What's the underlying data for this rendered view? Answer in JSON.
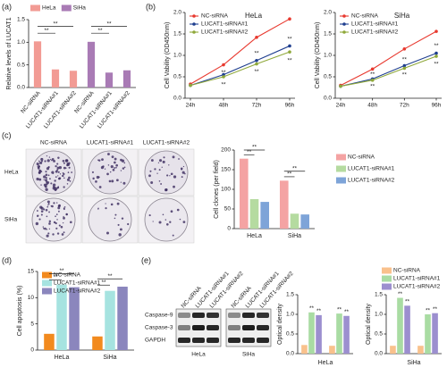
{
  "panel_labels": [
    "(a)",
    "(b)",
    "(c)",
    "(d)",
    "(e)"
  ],
  "colony_images": {
    "columns": [
      "NC-siRNA",
      "LUCAT1-siRNA#1",
      "LUCAT1-siRNA#2"
    ],
    "rows": [
      "HeLa",
      "SiHa"
    ]
  },
  "western_blot": {
    "columns": [
      "NC-siRNA",
      "LUCAT1-siRNA#1",
      "LUCAT1-siRNA#2",
      "NC-siRNA",
      "LUCAT1-siRNA#1",
      "LUCAT1-siRNA#2"
    ],
    "rows": [
      "Caspase-9",
      "Caspase-3",
      "GAPDH"
    ],
    "groups": [
      "HeLa",
      "SiHa"
    ]
  },
  "chart_data": [
    {
      "type": "bar",
      "y_label": "Relative levels of LUCAT1",
      "categories": [
        "NC-siRNA",
        "LUCAT1-siRNA#1",
        "LUCAT1-siRNA#2",
        "NC-siRNA",
        "LUCAT1-siRNA#1",
        "LUCAT1-siRNA#2"
      ],
      "series": [
        {
          "name": "HeLa",
          "color": "#f29b94",
          "values": [
            1.02,
            0.4,
            0.37,
            null,
            null,
            null
          ]
        },
        {
          "name": "SiHa",
          "color": "#a97bb5",
          "values": [
            null,
            null,
            null,
            1.01,
            0.33,
            0.38
          ]
        }
      ],
      "ylim": [
        0,
        1.5
      ],
      "yticks": [
        {
          "value": 0,
          "label": "0.0"
        },
        {
          "value": 0.5,
          "label": "0.5"
        },
        {
          "value": 1,
          "label": "1.0"
        },
        {
          "value": 1.5,
          "label": "1.5"
        }
      ],
      "legend": "top",
      "annotations": [
        "**",
        "**",
        "**",
        "**"
      ]
    },
    {
      "type": "line",
      "title": "HeLa",
      "y_label": "Cell Vability (OD450nm)",
      "categories": [
        "24h",
        "48h",
        "72h",
        "96h"
      ],
      "series": [
        {
          "name": "NC-siRNA",
          "color": "#e8392f",
          "values": [
            0.33,
            0.78,
            1.42,
            1.85
          ]
        },
        {
          "name": "LUCAT1-siRNA#1",
          "color": "#1f3f8f",
          "values": [
            0.3,
            0.55,
            0.88,
            1.22
          ]
        },
        {
          "name": "LUCAT1-siRNA#2",
          "color": "#8fa83a",
          "values": [
            0.3,
            0.5,
            0.8,
            1.08
          ]
        }
      ],
      "ylim": [
        0,
        2
      ],
      "yticks": [
        {
          "value": 0,
          "label": "0.0"
        },
        {
          "value": 0.5,
          "label": "0.5"
        },
        {
          "value": 1,
          "label": "1.0"
        },
        {
          "value": 1.5,
          "label": "1.5"
        },
        {
          "value": 2,
          "label": "2.0"
        }
      ],
      "legend": "upper left",
      "annotations": [
        "**",
        "**",
        "**",
        "**",
        "**",
        "**"
      ]
    },
    {
      "type": "line",
      "title": "SiHa",
      "y_label": "Cell Vability (OD450nm)",
      "categories": [
        "24h",
        "48h",
        "72h",
        "96h"
      ],
      "series": [
        {
          "name": "NC-siRNA",
          "color": "#e8392f",
          "values": [
            0.3,
            0.68,
            1.15,
            1.56
          ]
        },
        {
          "name": "LUCAT1-siRNA#1",
          "color": "#1f3f8f",
          "values": [
            0.28,
            0.45,
            0.76,
            1.05
          ]
        },
        {
          "name": "LUCAT1-siRNA#2",
          "color": "#8fa83a",
          "values": [
            0.28,
            0.42,
            0.7,
            0.98
          ]
        }
      ],
      "ylim": [
        0,
        2
      ],
      "yticks": [
        {
          "value": 0,
          "label": "0.0"
        },
        {
          "value": 0.5,
          "label": "0.5"
        },
        {
          "value": 1,
          "label": "1.0"
        },
        {
          "value": 1.5,
          "label": "1.5"
        },
        {
          "value": 2,
          "label": "2.0"
        }
      ],
      "legend": "upper left",
      "annotations": [
        "**",
        "**",
        "**",
        "**",
        "**",
        "**"
      ]
    },
    {
      "type": "bar",
      "y_label": "Cell clones (per field)",
      "categories": [
        "HeLa",
        "SiHa"
      ],
      "series": [
        {
          "name": "NC-siRNA",
          "color": "#f4a3a3",
          "values": [
            178,
            122
          ]
        },
        {
          "name": "LUCAT1-siRNA#1",
          "color": "#b5dba0",
          "values": [
            75,
            38
          ]
        },
        {
          "name": "LUCAT1-siRNA#2",
          "color": "#7ea4d8",
          "values": [
            68,
            36
          ]
        }
      ],
      "ylim": [
        0,
        200
      ],
      "yticks": [
        0,
        50,
        100,
        150,
        200
      ],
      "legend": "right",
      "annotations": [
        "**",
        "**",
        "**",
        "**"
      ]
    },
    {
      "type": "bar",
      "y_label": "Cell apoptosis (%)",
      "categories": [
        "HeLa",
        "SiHa"
      ],
      "series": [
        {
          "name": "NC-siRNA",
          "color": "#f28a1e",
          "values": [
            3.1,
            2.6
          ]
        },
        {
          "name": "LUCAT1-siRNA#1",
          "color": "#a6e3e0",
          "values": [
            12.5,
            11.3
          ]
        },
        {
          "name": "LUCAT1-siRNA#2",
          "color": "#8b86bd",
          "values": [
            12.0,
            12.1
          ]
        }
      ],
      "ylim": [
        0,
        15
      ],
      "yticks": [
        0,
        5,
        10,
        15
      ],
      "legend": "upper left",
      "annotations": [
        "**",
        "**",
        "**",
        "**"
      ]
    },
    {
      "type": "bar",
      "y_label": "Optical density",
      "x_label": "HeLa",
      "categories": [
        null,
        null
      ],
      "series": [
        {
          "color": "#f9c18c",
          "values": [
            0.22,
            0.2
          ]
        },
        {
          "color": "#a9dca3",
          "values": [
            1.05,
            1.02
          ]
        },
        {
          "color": "#9c8fcf",
          "values": [
            0.98,
            0.96
          ]
        }
      ],
      "ylim": [
        0,
        1.5
      ],
      "yticks": [
        {
          "value": 0,
          "label": "0.0"
        },
        {
          "value": 0.5,
          "label": "0.5"
        },
        {
          "value": 1,
          "label": "1.0"
        },
        {
          "value": 1.5,
          "label": "1.5"
        }
      ],
      "annotations": [
        "**",
        "**",
        "**",
        "**"
      ]
    },
    {
      "type": "bar",
      "y_label": "Optical density",
      "x_label": "SiHa",
      "categories": [
        null,
        null
      ],
      "series": [
        {
          "name": "NC-siRNA",
          "color": "#f9c18c",
          "values": [
            0.2,
            0.2
          ]
        },
        {
          "name": "LUCAT1-siRNA#1",
          "color": "#a9dca3",
          "values": [
            1.42,
            1.0
          ]
        },
        {
          "name": "LUCAT1-siRNA#2",
          "color": "#9c8fcf",
          "values": [
            1.22,
            1.03
          ]
        }
      ],
      "ylim": [
        0,
        1.5
      ],
      "yticks": [
        {
          "value": 0,
          "label": "0.0"
        },
        {
          "value": 0.5,
          "label": "0.5"
        },
        {
          "value": 1,
          "label": "1.0"
        },
        {
          "value": 1.5,
          "label": "1.5"
        }
      ],
      "legend": "above",
      "annotations": [
        "**",
        "**",
        "**",
        "**"
      ]
    }
  ]
}
